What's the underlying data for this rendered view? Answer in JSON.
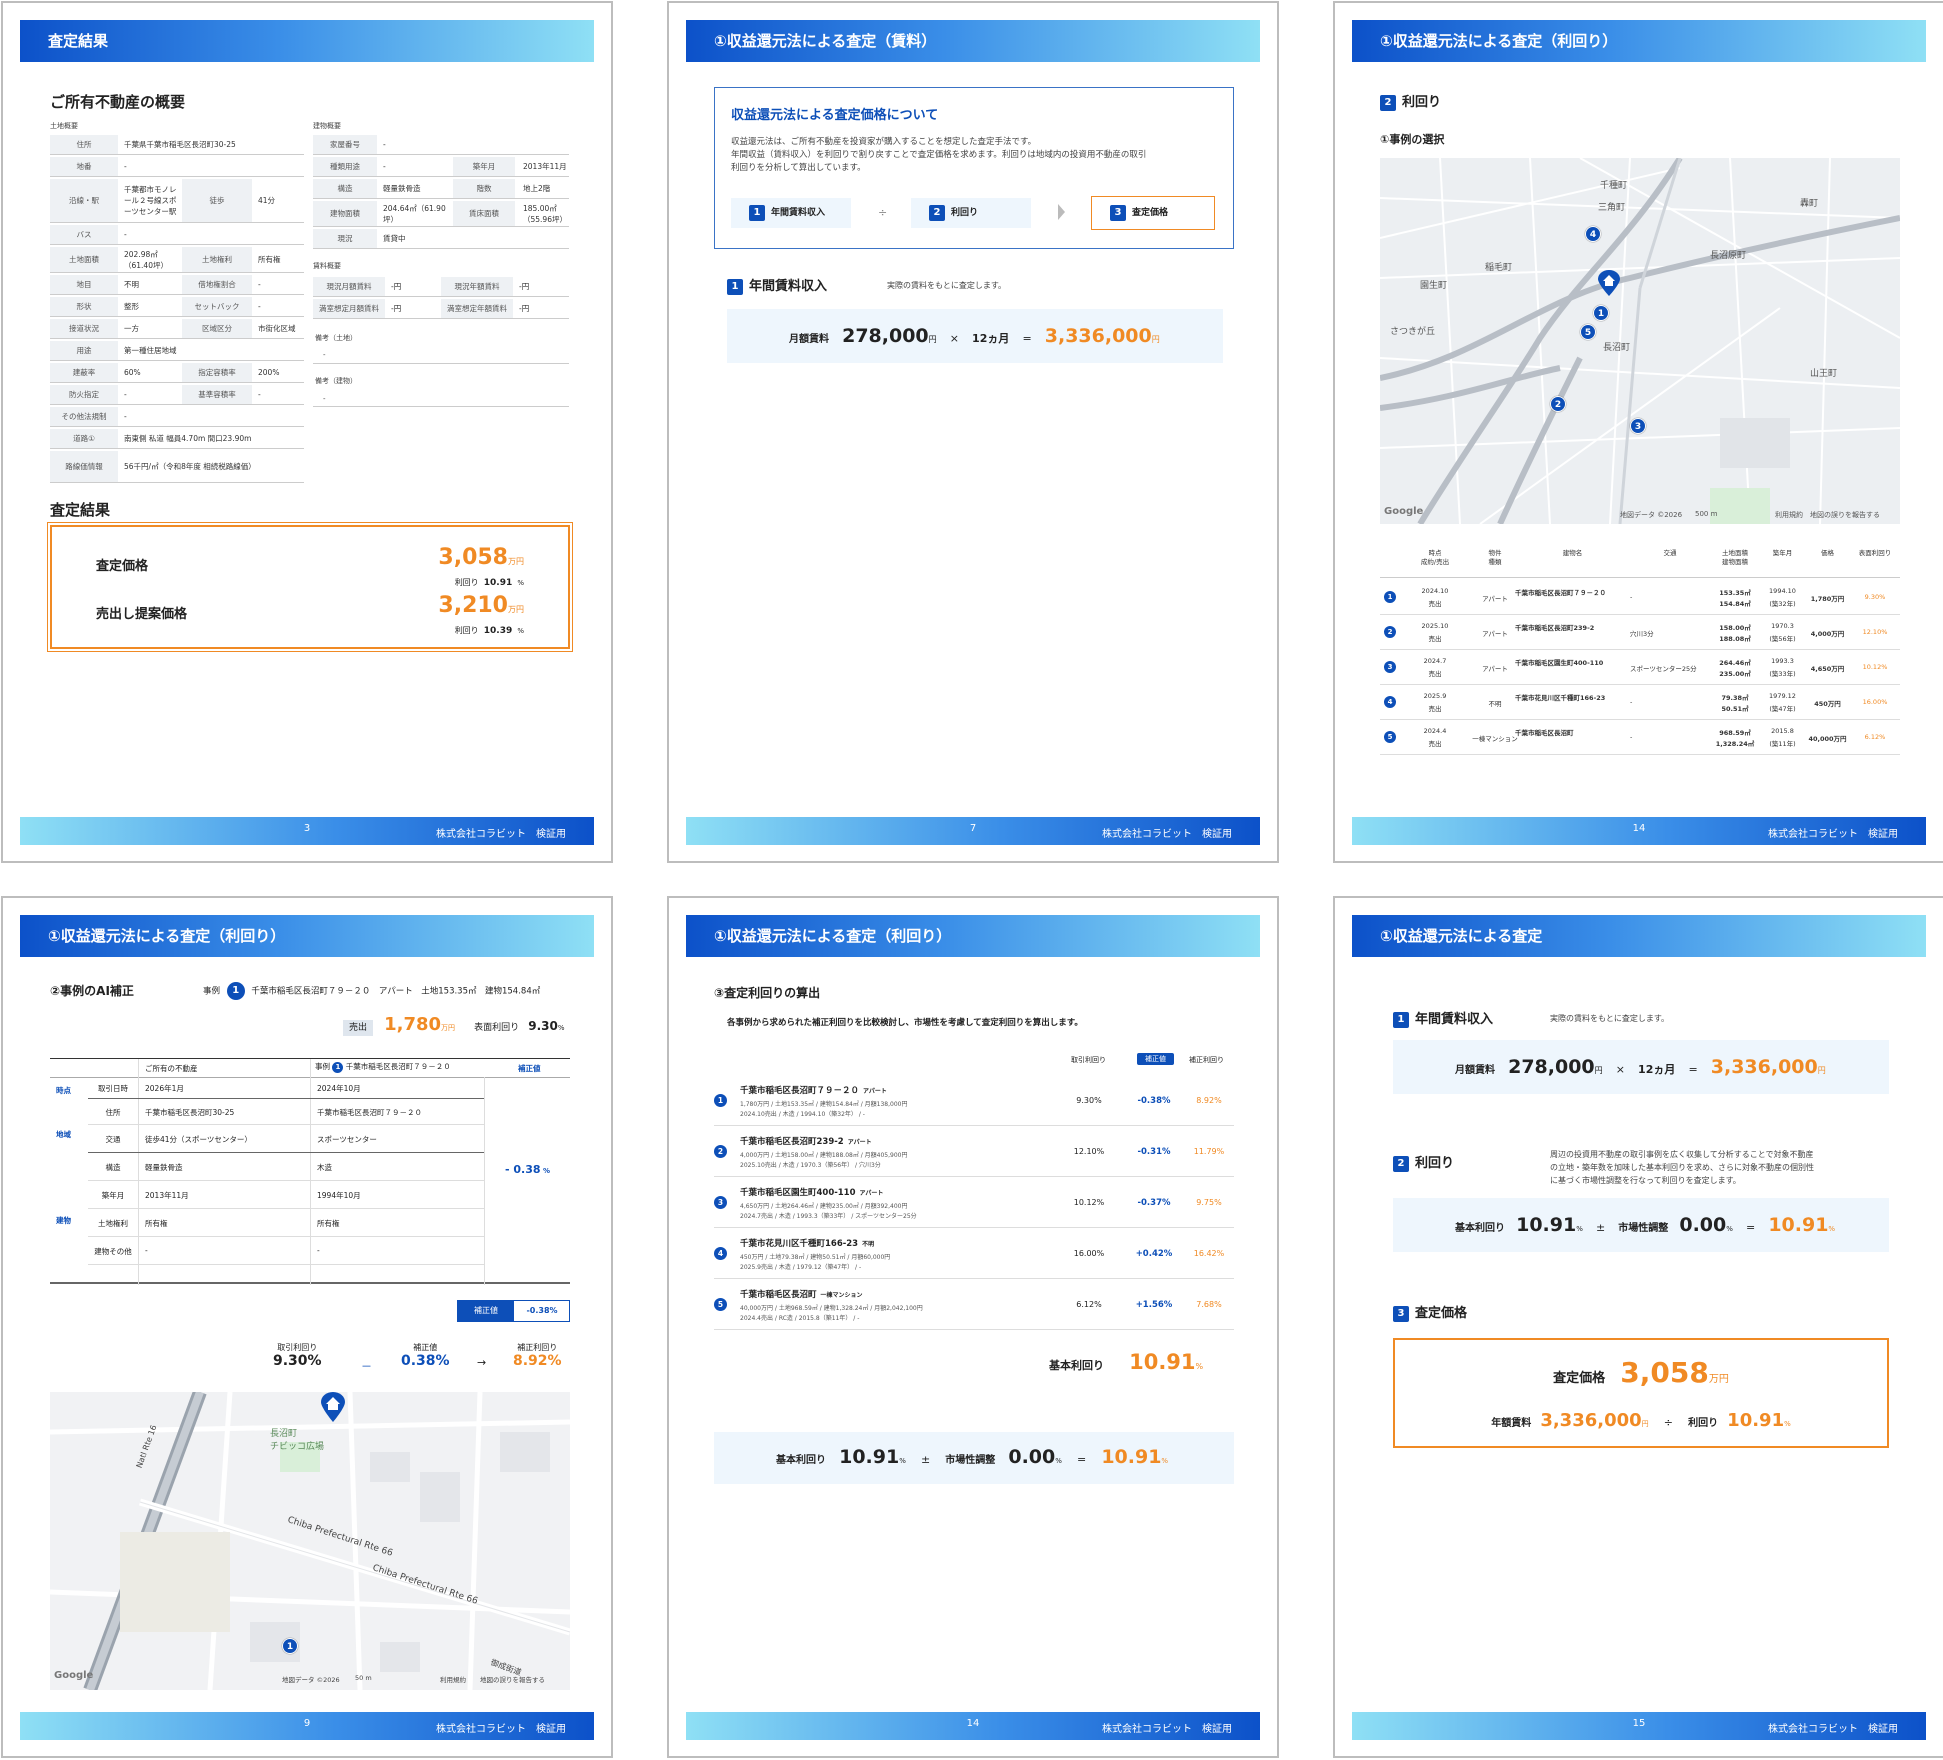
{
  "footer_company": "株式会社コラビット　検証用",
  "p1": {
    "header": "査定結果",
    "page": "3",
    "title": "ご所有不動産の概要",
    "land_label": "土地概要",
    "building_label": "建物概要",
    "land_rows": [
      {
        "k": "住所",
        "v": "千葉県千葉市稲毛区長沼町30-25"
      },
      {
        "k": "地番",
        "v": "-"
      },
      {
        "k": "沿線・駅",
        "v": "千葉都市モノレール２号線スポーツセンター駅",
        "k2": "徒歩",
        "v2": "41分"
      },
      {
        "k": "バス",
        "v": "-"
      },
      {
        "k": "土地面積",
        "v": "202.98㎡（61.40坪）",
        "k2": "土地権利",
        "v2": "所有権"
      },
      {
        "k": "地目",
        "v": "不明",
        "k2": "借地権割合",
        "v2": "-"
      },
      {
        "k": "形状",
        "v": "整形",
        "k2": "セットバック",
        "v2": "-"
      },
      {
        "k": "接道状況",
        "v": "一方",
        "k2": "区域区分",
        "v2": "市街化区域"
      },
      {
        "k": "用途",
        "v": "第一種住居地域"
      },
      {
        "k": "建蔽率",
        "v": "60%",
        "k2": "指定容積率",
        "v2": "200%"
      },
      {
        "k": "防火指定",
        "v": "-",
        "k2": "基準容積率",
        "v2": "-"
      },
      {
        "k": "その他法規制",
        "v": "-"
      },
      {
        "k": "道路①",
        "v": "南東側 私道 幅員4.70m 間口23.90m"
      },
      {
        "k": "路線価情報",
        "v": "56千円/㎡（令和8年度 相続税路線価）"
      }
    ],
    "bldg_rows": [
      {
        "k": "家屋番号",
        "v": "-"
      },
      {
        "k": "種類用途",
        "v": "-",
        "k2": "築年月",
        "v2": "2013年11月"
      },
      {
        "k": "構造",
        "v": "軽量鉄骨造",
        "k2": "階数",
        "v2": "地上2階"
      },
      {
        "k": "建物面積",
        "v": "204.64㎡（61.90坪）",
        "k2": "賃床面積",
        "v2": "185.00㎡（55.96坪）"
      },
      {
        "k": "現況",
        "v": "賃貸中"
      }
    ],
    "rent_label": "賃料概要",
    "rent_rows": [
      {
        "k": "現況月額賃料",
        "v": "-円",
        "k2": "現況年額賃料",
        "v2": "-円"
      },
      {
        "k": "満室想定月額賃料",
        "v": "-円",
        "k2": "満室想定年額賃料",
        "v2": "-円"
      }
    ],
    "note_land": "備考（土地）",
    "note_bldg": "備考（建物）",
    "dash": "-",
    "result_title": "査定結果",
    "r1_label": "査定価格",
    "r1_val": "3,058",
    "r1_unit": "万円",
    "r1_sub": "利回り",
    "r1_rate": "10.91",
    "pct": "%",
    "r2_label": "売出し提案価格",
    "r2_val": "3,210",
    "r2_unit": "万円",
    "r2_sub": "利回り",
    "r2_rate": "10.39"
  },
  "p2": {
    "header": "①収益還元法による査定（賃料）",
    "page": "7",
    "box_title": "収益還元法による査定価格について",
    "box_text1": "収益還元法は、ご所有不動産を投資家が購入することを想定した査定手法です。",
    "box_text2": "年間収益（賃料収入）を利回りで割り戻すことで査定価格を求めます。利回りは地域内の投資用不動産の取引",
    "box_text3": "利回りを分析して算出しています。",
    "s1": "年間賃料収入",
    "s2": "利回り",
    "s3": "査定価格",
    "div": "÷",
    "sec_title": "年間賃料収入",
    "sec_note": "実際の賃料をもとに査定します。",
    "monthly_label": "月額賃料",
    "monthly": "278,000",
    "yen": "円",
    "times": "×",
    "months": "12ヵ月",
    "eq": "=",
    "annual": "3,336,000"
  },
  "p3": {
    "header": "①収益還元法による査定（利回り）",
    "page": "14",
    "sec": "利回り",
    "sub": "①事例の選択",
    "map_labels": [
      "千種町",
      "三角町",
      "長沼原町",
      "園生町",
      "轟町",
      "さつきが丘",
      "山王町",
      "稲毛町",
      "長沼町",
      "Google",
      "地図データ ©2026",
      "500 m",
      "利用規約",
      "地図の誤りを報告する"
    ],
    "cols": [
      "時点\n成約/売出",
      "物件\n種類",
      "建物名",
      "交通",
      "土地面積\n建物面積",
      "築年月",
      "価格",
      "表面利回り"
    ],
    "rows": [
      {
        "n": "1",
        "t1": "2024.10",
        "t2": "売出",
        "type": "アパート",
        "name": "千葉市稲毛区長沼町７９－２０",
        "traffic": "-",
        "a1": "153.35㎡",
        "a2": "154.84㎡",
        "y1": "1994.10",
        "y2": "(築32年)",
        "price": "1,780万円",
        "rate": "9.30%"
      },
      {
        "n": "2",
        "t1": "2025.10",
        "t2": "売出",
        "type": "アパート",
        "name": "千葉市稲毛区長沼町239-2",
        "traffic": "穴川3分",
        "a1": "158.00㎡",
        "a2": "188.08㎡",
        "y1": "1970.3",
        "y2": "(築56年)",
        "price": "4,000万円",
        "rate": "12.10%"
      },
      {
        "n": "3",
        "t1": "2024.7",
        "t2": "売出",
        "type": "アパート",
        "name": "千葉市稲毛区園生町400-110",
        "traffic": "スポーツセンター25分",
        "a1": "264.46㎡",
        "a2": "235.00㎡",
        "y1": "1993.3",
        "y2": "(築33年)",
        "price": "4,650万円",
        "rate": "10.12%"
      },
      {
        "n": "4",
        "t1": "2025.9",
        "t2": "売出",
        "type": "不明",
        "name": "千葉市花見川区千種町166-23",
        "traffic": "-",
        "a1": "79.38㎡",
        "a2": "50.51㎡",
        "y1": "1979.12",
        "y2": "(築47年)",
        "price": "450万円",
        "rate": "16.00%"
      },
      {
        "n": "5",
        "t1": "2024.4",
        "t2": "売出",
        "type": "一棟マンション",
        "name": "千葉市稲毛区長沼町",
        "traffic": "-",
        "a1": "968.59㎡",
        "a2": "1,328.24㎡",
        "y1": "2015.8",
        "y2": "(築11年)",
        "price": "40,000万円",
        "rate": "6.12%"
      }
    ]
  },
  "p4": {
    "header": "①収益還元法による査定（利回り）",
    "page": "9",
    "title": "②事例のAI補正",
    "case_label": "事例",
    "case_num": "1",
    "case_text": "千葉市稲毛区長沼町７９－２０　アパート　土地153.35㎡　建物154.84㎡",
    "sale_badge": "売出",
    "sale_price": "1,780",
    "man": "万円",
    "surface_label": "表面利回り",
    "surface_rate": "9.30",
    "pct": "%",
    "col_own": "ご所有の不動産",
    "col_case": "事例",
    "col_case_name": "千葉市稲毛区長沼町７９－２０",
    "col_adj": "補正値",
    "grp_time": "時点",
    "grp_area": "地域",
    "grp_bldg": "建物",
    "rows": [
      {
        "k": "取引日時",
        "a": "2026年1月",
        "b": "2024年10月"
      },
      {
        "k": "住所",
        "a": "千葉市稲毛区長沼町30-25",
        "b": "千葉市稲毛区長沼町７９－２０"
      },
      {
        "k": "交通",
        "a": "徒歩41分（スポーツセンター）",
        "b": "スポーツセンター"
      },
      {
        "k": "構造",
        "a": "軽量鉄骨造",
        "b": "木造"
      },
      {
        "k": "築年月",
        "a": "2013年11月",
        "b": "1994年10月"
      },
      {
        "k": "土地権利",
        "a": "所有権",
        "b": "所有権"
      },
      {
        "k": "建物その他",
        "a": "-",
        "b": "-"
      }
    ],
    "adj_val": "- 0.38",
    "adj_badge": "補正値",
    "adj_badge_val": "-0.38%",
    "f1_label": "取引利回り",
    "f1": "9.30%",
    "minus": "－",
    "f2_label": "補正値",
    "f2": "0.38%",
    "arrow": "→",
    "f3_label": "補正利回り",
    "f3": "8.92%",
    "map_labels": [
      "長沼町\nチビッコ広場",
      "Natl Rte 16",
      "Chiba Prefectural Rte 66",
      "Chiba Prefectural Rte 66",
      "御成街道",
      "Google",
      "地図データ ©2026",
      "50 m",
      "利用規約",
      "地図の誤りを報告する"
    ]
  },
  "p5": {
    "header": "①収益還元法による査定（利回り）",
    "page": "14",
    "title": "③査定利回りの算出",
    "desc": "各事例から求められた補正利回りを比較検討し、市場性を考慮して査定利回りを算出します。",
    "c1": "取引利回り",
    "c2": "補正値",
    "c3": "補正利回り",
    "rows": [
      {
        "n": "1",
        "name": "千葉市稲毛区長沼町７９－２０",
        "type": "アパート",
        "d1": "1,780万円 / 土地153.35㎡ / 建物154.84㎡ / 月額138,000円",
        "d2": "2024.10売出 / 木造 / 1994.10（築32年） / -",
        "r": "9.30%",
        "a": "-0.38%",
        "c": "8.92%"
      },
      {
        "n": "2",
        "name": "千葉市稲毛区長沼町239-2",
        "type": "アパート",
        "d1": "4,000万円 / 土地158.00㎡ / 建物188.08㎡ / 月額405,900円",
        "d2": "2025.10売出 / 木造 / 1970.3（築56年） / 穴川3分",
        "r": "12.10%",
        "a": "-0.31%",
        "c": "11.79%"
      },
      {
        "n": "3",
        "name": "千葉市稲毛区園生町400-110",
        "type": "アパート",
        "d1": "4,650万円 / 土地264.46㎡ / 建物235.00㎡ / 月額392,400円",
        "d2": "2024.7売出 / 木造 / 1993.3（築33年） / スポーツセンター25分",
        "r": "10.12%",
        "a": "-0.37%",
        "c": "9.75%"
      },
      {
        "n": "4",
        "name": "千葉市花見川区千種町166-23",
        "type": "不明",
        "d1": "450万円 / 土地79.38㎡ / 建物50.51㎡ / 月額60,000円",
        "d2": "2025.9売出 / 木造 / 1979.12（築47年） / -",
        "r": "16.00%",
        "a": "+0.42%",
        "c": "16.42%"
      },
      {
        "n": "5",
        "name": "千葉市稲毛区長沼町",
        "type": "一棟マンション",
        "d1": "40,000万円 / 土地968.59㎡ / 建物1,328.24㎡ / 月額2,042,100円",
        "d2": "2024.4売出 / RC造 / 2015.8（築11年） / -",
        "r": "6.12%",
        "a": "+1.56%",
        "c": "7.68%"
      }
    ],
    "base_label": "基本利回り",
    "base": "10.91",
    "pct": "%",
    "f_base_label": "基本利回り",
    "f_base": "10.91",
    "pm": "±",
    "f_mkt_label": "市場性調整",
    "f_mkt": "0.00",
    "eq": "=",
    "f_res": "10.91"
  },
  "p6": {
    "header": "①収益還元法による査定",
    "page": "15",
    "s1": "年間賃料収入",
    "s1_note": "実際の賃料をもとに査定します。",
    "monthly_label": "月額賃料",
    "monthly": "278,000",
    "yen": "円",
    "times": "×",
    "months": "12ヵ月",
    "eq": "=",
    "annual": "3,336,000",
    "s2": "利回り",
    "s2_note1": "周辺の投資用不動産の取引事例を広く収集して分析することで対象不動産",
    "s2_note2": "の立地・築年数を加味した基本利回りを求め、さらに対象不動産の個別性",
    "s2_note3": "に基づく市場性調整を行なって利回りを査定します。",
    "base_label": "基本利回り",
    "base": "10.91",
    "pct": "%",
    "pm": "±",
    "mkt_label": "市場性調整",
    "mkt": "0.00",
    "res": "10.91",
    "s3": "査定価格",
    "price_label": "査定価格",
    "price": "3,058",
    "man": "万円",
    "annual_label": "年額賃料",
    "div": "÷",
    "rate_label": "利回り",
    "rate": "10.91"
  }
}
